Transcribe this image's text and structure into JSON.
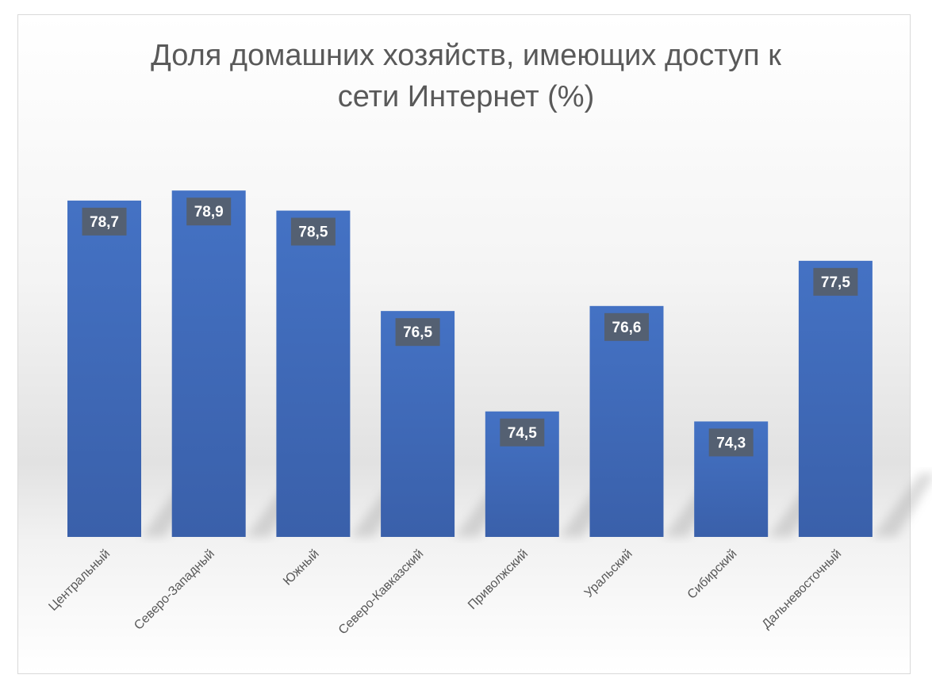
{
  "chart_data": {
    "type": "bar",
    "title": "Доля домашних хозяйств, имеющих доступ к сети Интернет (%)",
    "title_lines": [
      "Доля домашних хозяйств, имеющих доступ к",
      "сети Интернет (%)"
    ],
    "categories": [
      "Центральный",
      "Северо-Западный",
      "Южный",
      "Северо-Кавказский",
      "Приволжский",
      "Уральский",
      "Сибирский",
      "Дальневосточный"
    ],
    "values": [
      78.7,
      78.9,
      78.5,
      76.5,
      74.5,
      76.6,
      74.3,
      77.5
    ],
    "value_labels": [
      "78,7",
      "78,9",
      "78,5",
      "76,5",
      "74,5",
      "76,6",
      "74,3",
      "77,5"
    ],
    "xlabel": "",
    "ylabel": "",
    "ylim": [
      72,
      80
    ],
    "grid": false,
    "legend": "none",
    "colors": {
      "bar": "#4472c4",
      "bar_dark": "#3a5fa8",
      "label_bg": "#546072",
      "label_text": "#ffffff",
      "axis_text": "#595959"
    }
  }
}
